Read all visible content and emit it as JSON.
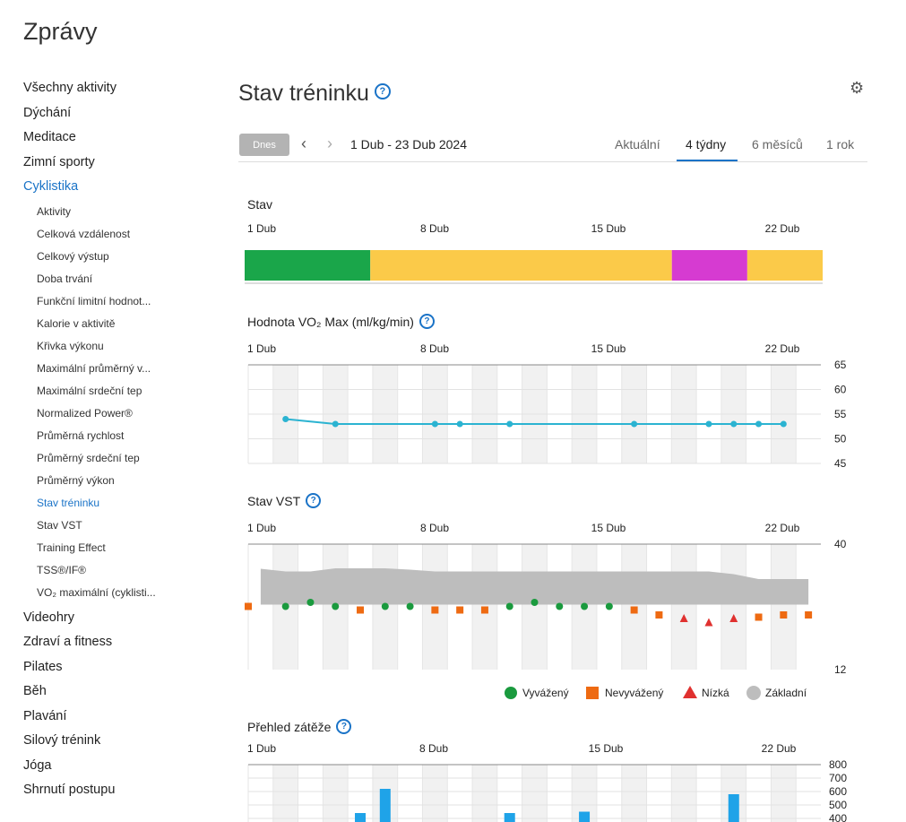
{
  "app": {
    "title": "Zprávy"
  },
  "sidebar": {
    "top_before": [
      "Všechny aktivity",
      "Dýchání",
      "Meditace",
      "Zimní sporty"
    ],
    "active_category": "Cyklistika",
    "sub_items": [
      "Aktivity",
      "Celková vzdálenost",
      "Celkový výstup",
      "Doba trvání",
      "Funkční limitní hodnot...",
      "Kalorie v aktivitě",
      "Křivka výkonu",
      "Maximální průměrný v...",
      "Maximální srdeční tep",
      "Normalized Power®",
      "Průměrná rychlost",
      "Průměrný srdeční tep",
      "Průměrný výkon",
      "Stav tréninku",
      "Stav VST",
      "Training Effect",
      "TSS®/IF®",
      "VO₂ maximální (cyklisti..."
    ],
    "active_sub": "Stav tréninku",
    "top_after": [
      "Videohry",
      "Zdraví a fitness",
      "Pilates",
      "Běh",
      "Plavání",
      "Silový trénink",
      "Jóga",
      "Shrnutí postupu"
    ]
  },
  "page": {
    "title": "Stav tréninku",
    "help_icon": "?"
  },
  "toolbar": {
    "today_label": "Dnes",
    "prev_icon": "chevron-left-icon",
    "next_icon": "chevron-right-icon",
    "date_range": "1 Dub - 23 Dub 2024",
    "tabs": [
      "Aktuální",
      "4 týdny",
      "6 měsíců",
      "1 rok"
    ],
    "active_tab": "4 týdny"
  },
  "colors": {
    "accent": "#1a73c7",
    "productive": "#1aa64a",
    "maintaining": "#fbca49",
    "peaking": "#d63bd1",
    "vo2_line": "#2bb3d1",
    "balanced": "#1a9a3e",
    "unbalanced": "#ee6a12",
    "low": "#e0312f",
    "baseline": "#bdbdbd",
    "load_bar": "#1fa3e8"
  },
  "date_labels": [
    "1 Dub",
    "8 Dub",
    "15 Dub",
    "22 Dub"
  ],
  "chart_data": [
    {
      "type": "bar",
      "title": "Stav",
      "x_labels": [
        "1 Dub",
        "8 Dub",
        "15 Dub",
        "22 Dub"
      ],
      "segments": [
        {
          "from_day": 1,
          "to_day": 6,
          "color": "#1aa64a"
        },
        {
          "from_day": 6,
          "to_day": 18,
          "color": "#fbca49"
        },
        {
          "from_day": 18,
          "to_day": 21,
          "color": "#d63bd1"
        },
        {
          "from_day": 21,
          "to_day": 24,
          "color": "#fbca49"
        }
      ]
    },
    {
      "type": "line",
      "title": "Hodnota VO₂ Max (ml/kg/min)",
      "x_labels": [
        "1 Dub",
        "8 Dub",
        "15 Dub",
        "22 Dub"
      ],
      "y_ticks": [
        "65",
        "60",
        "55",
        "50",
        "45"
      ],
      "ylim": [
        45,
        65
      ],
      "points": [
        {
          "x": 2.5,
          "y": 54
        },
        {
          "x": 4.5,
          "y": 53
        },
        {
          "x": 8.5,
          "y": 53
        },
        {
          "x": 9.5,
          "y": 53
        },
        {
          "x": 11.5,
          "y": 53
        },
        {
          "x": 16.5,
          "y": 53
        },
        {
          "x": 19.5,
          "y": 53
        },
        {
          "x": 20.5,
          "y": 53
        },
        {
          "x": 21.5,
          "y": 53
        },
        {
          "x": 22.5,
          "y": 53
        }
      ]
    },
    {
      "type": "scatter",
      "title": "Stav VST",
      "x_labels": [
        "1 Dub",
        "8 Dub",
        "15 Dub",
        "22 Dub"
      ],
      "y_ticks": [
        "40",
        "12"
      ],
      "ylim": [
        12,
        40
      ],
      "baseline_upper": [
        {
          "x": 1.5,
          "y": 34.5
        },
        {
          "x": 2.5,
          "y": 33.9
        },
        {
          "x": 3.5,
          "y": 33.9
        },
        {
          "x": 4.5,
          "y": 34.6
        },
        {
          "x": 5.5,
          "y": 34.6
        },
        {
          "x": 6.5,
          "y": 34.6
        },
        {
          "x": 7.5,
          "y": 34.3
        },
        {
          "x": 8.5,
          "y": 33.9
        },
        {
          "x": 19.5,
          "y": 33.9
        },
        {
          "x": 20.5,
          "y": 33.3
        },
        {
          "x": 21.5,
          "y": 32.2
        },
        {
          "x": 23.5,
          "y": 32.2
        }
      ],
      "baseline_lower": 26.5,
      "series": [
        {
          "name": "Vyvážený",
          "shape": "circle",
          "points": [
            {
              "x": 2.5,
              "y": 26.1
            },
            {
              "x": 3.5,
              "y": 27.0
            },
            {
              "x": 4.5,
              "y": 26.1
            },
            {
              "x": 6.5,
              "y": 26.1
            },
            {
              "x": 7.5,
              "y": 26.1
            },
            {
              "x": 11.5,
              "y": 26.1
            },
            {
              "x": 12.5,
              "y": 27.0
            },
            {
              "x": 13.5,
              "y": 26.1
            },
            {
              "x": 14.5,
              "y": 26.1
            },
            {
              "x": 15.5,
              "y": 26.1
            }
          ]
        },
        {
          "name": "Nevyvážený",
          "shape": "square",
          "points": [
            {
              "x": 1.0,
              "y": 26.1
            },
            {
              "x": 5.5,
              "y": 25.3
            },
            {
              "x": 8.5,
              "y": 25.3
            },
            {
              "x": 9.5,
              "y": 25.3
            },
            {
              "x": 10.5,
              "y": 25.3
            },
            {
              "x": 16.5,
              "y": 25.3
            },
            {
              "x": 17.5,
              "y": 24.2
            },
            {
              "x": 21.5,
              "y": 23.7
            },
            {
              "x": 22.5,
              "y": 24.2
            },
            {
              "x": 23.5,
              "y": 24.2
            }
          ]
        },
        {
          "name": "Nízká",
          "shape": "triangle",
          "points": [
            {
              "x": 18.5,
              "y": 23.4
            },
            {
              "x": 19.5,
              "y": 22.5
            },
            {
              "x": 20.5,
              "y": 23.4
            }
          ]
        },
        {
          "name": "Základní",
          "shape": "area",
          "points": []
        }
      ]
    },
    {
      "type": "bar",
      "title": "Přehled zátěže",
      "x_labels": [
        "1 Dub",
        "8 Dub",
        "15 Dub",
        "22 Dub"
      ],
      "y_ticks": [
        "800",
        "700",
        "600",
        "500",
        "400"
      ],
      "ylim": [
        0,
        800
      ],
      "values": [
        {
          "x": 5.5,
          "y": 440
        },
        {
          "x": 6.5,
          "y": 620
        },
        {
          "x": 11.5,
          "y": 440
        },
        {
          "x": 14.5,
          "y": 450
        },
        {
          "x": 20.5,
          "y": 580
        }
      ]
    }
  ]
}
